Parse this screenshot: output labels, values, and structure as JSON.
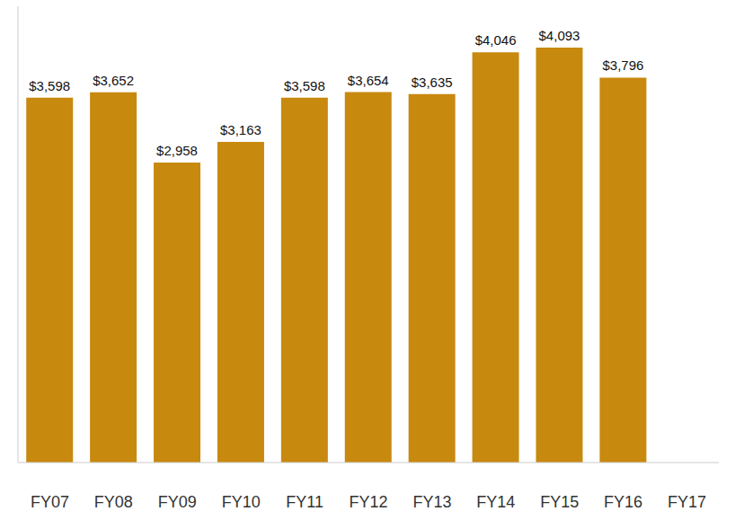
{
  "chart_data": {
    "type": "bar",
    "categories": [
      "FY07",
      "FY08",
      "FY09",
      "FY10",
      "FY11",
      "FY12",
      "FY13",
      "FY14",
      "FY15",
      "FY16",
      "FY17"
    ],
    "values": [
      3598,
      3652,
      2958,
      3163,
      3598,
      3654,
      3635,
      4046,
      4093,
      3796,
      null
    ],
    "value_labels": [
      "$3,598",
      "$3,652",
      "$2,958",
      "$3,163",
      "$3,598",
      "$3,654",
      "$3,635",
      "$4,046",
      "$4,093",
      "$3,796",
      null
    ],
    "color": "#c8890f",
    "ylim": [
      0,
      4500
    ],
    "grid": false,
    "data_labels": true,
    "tick_labels": "x"
  }
}
